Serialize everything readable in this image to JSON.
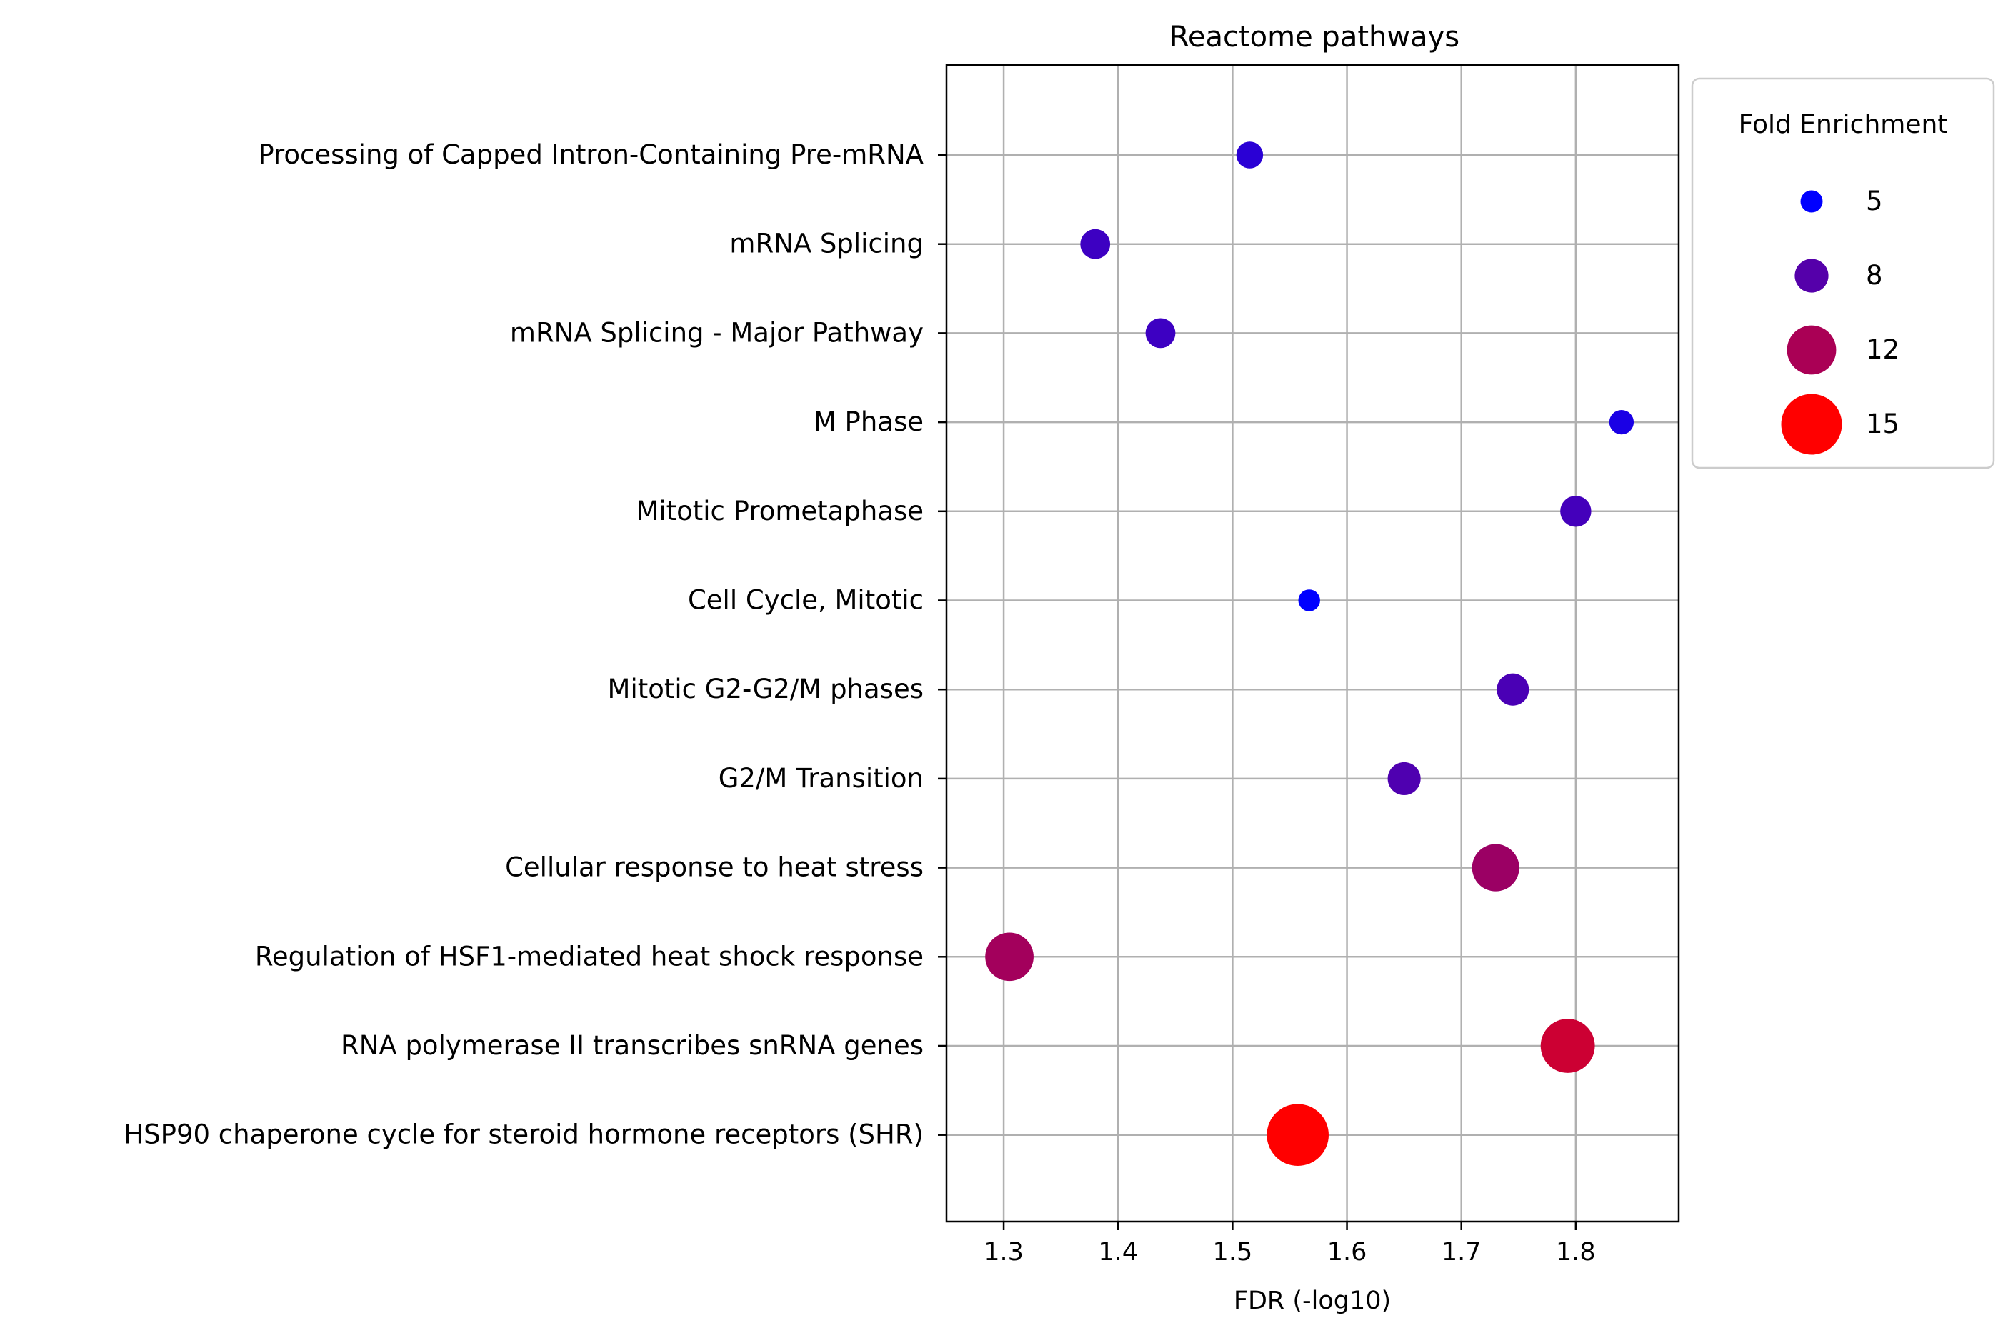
{
  "chart_data": {
    "type": "scatter",
    "title": "Reactome pathways",
    "xlabel": "FDR (-log10)",
    "ylabel": "",
    "xlim": [
      1.25,
      1.89
    ],
    "xticks": [
      "1.3",
      "1.4",
      "1.5",
      "1.6",
      "1.7",
      "1.8"
    ],
    "grid": true,
    "legend_position": "outside-top-right",
    "size_legend": {
      "title": "Fold Enrichment",
      "entries": [
        {
          "label": "5",
          "value": 5,
          "color": "#0000ff"
        },
        {
          "label": "8",
          "value": 8,
          "color": "#5500aa"
        },
        {
          "label": "12",
          "value": 12,
          "color": "#aa0055"
        },
        {
          "label": "15",
          "value": 15,
          "color": "#ff0000"
        }
      ]
    },
    "points": [
      {
        "label": "Processing of Capped Intron-Containing Pre-mRNA",
        "x": 1.515,
        "fold_enrichment": 6.2,
        "color": "#2a00d5"
      },
      {
        "label": "mRNA Splicing",
        "x": 1.38,
        "fold_enrichment": 7.0,
        "color": "#3d00c2"
      },
      {
        "label": "mRNA Splicing - Major Pathway",
        "x": 1.437,
        "fold_enrichment": 7.0,
        "color": "#3d00c2"
      },
      {
        "label": "M Phase",
        "x": 1.84,
        "fold_enrichment": 5.6,
        "color": "#1a00e5"
      },
      {
        "label": "Mitotic Prometaphase",
        "x": 1.8,
        "fold_enrichment": 7.3,
        "color": "#4400bb"
      },
      {
        "label": "Cell Cycle, Mitotic",
        "x": 1.567,
        "fold_enrichment": 4.9,
        "color": "#0000ff"
      },
      {
        "label": "Mitotic G2-G2/M phases",
        "x": 1.745,
        "fold_enrichment": 7.6,
        "color": "#4a00b5"
      },
      {
        "label": "G2/M Transition",
        "x": 1.65,
        "fold_enrichment": 7.8,
        "color": "#4f00b0"
      },
      {
        "label": "Cellular response to heat stress",
        "x": 1.73,
        "fold_enrichment": 11.5,
        "color": "#9b0064"
      },
      {
        "label": "Regulation of HSF1-mediated heat shock response",
        "x": 1.305,
        "fold_enrichment": 11.8,
        "color": "#a3005c"
      },
      {
        "label": "RNA polymerase II transcribes snRNA genes",
        "x": 1.793,
        "fold_enrichment": 13.3,
        "color": "#cc0033"
      },
      {
        "label": "HSP90 chaperone cycle for steroid hormone receptors (SHR)",
        "x": 1.557,
        "fold_enrichment": 15.3,
        "color": "#ff0000"
      }
    ]
  }
}
